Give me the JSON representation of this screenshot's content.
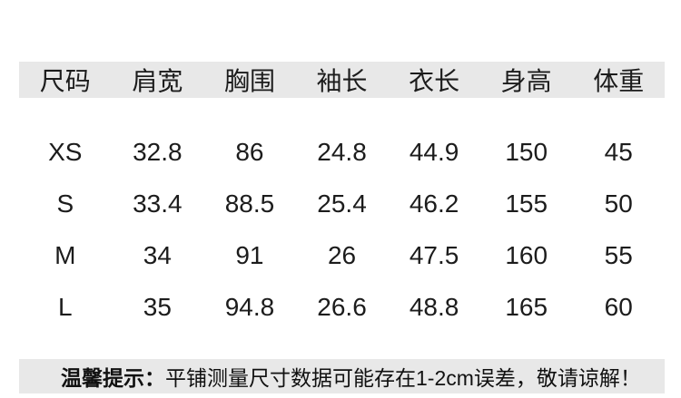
{
  "colors": {
    "bar_bg": "#e8e8e8",
    "text": "#1c1c1c",
    "page_bg": "#ffffff"
  },
  "size_table": {
    "columns": [
      "尺码",
      "肩宽",
      "胸围",
      "袖长",
      "衣长",
      "身高",
      "体重"
    ],
    "rows": [
      {
        "cells": [
          "XS",
          "32.8",
          "86",
          "24.8",
          "44.9",
          "150",
          "45"
        ]
      },
      {
        "cells": [
          "S",
          "33.4",
          "88.5",
          "25.4",
          "46.2",
          "155",
          "50"
        ]
      },
      {
        "cells": [
          "M",
          "34",
          "91",
          "26",
          "47.5",
          "160",
          "55"
        ]
      },
      {
        "cells": [
          "L",
          "35",
          "94.8",
          "26.6",
          "48.8",
          "165",
          "60"
        ]
      }
    ]
  },
  "note": {
    "label": "温馨提示：",
    "text": "平铺测量尺寸数据可能存在1-2cm误差，敬请谅解！"
  },
  "chart_data": {
    "type": "table",
    "columns": [
      "尺码",
      "肩宽",
      "胸围",
      "袖长",
      "衣长",
      "身高",
      "体重"
    ],
    "rows": [
      [
        "XS",
        32.8,
        86,
        24.8,
        44.9,
        150,
        45
      ],
      [
        "S",
        33.4,
        88.5,
        25.4,
        46.2,
        155,
        50
      ],
      [
        "M",
        34,
        91,
        26,
        47.5,
        160,
        55
      ],
      [
        "L",
        35,
        94.8,
        26.6,
        48.8,
        165,
        60
      ]
    ],
    "footnote": "温馨提示：平铺测量尺寸数据可能存在1-2cm误差，敬请谅解！"
  }
}
